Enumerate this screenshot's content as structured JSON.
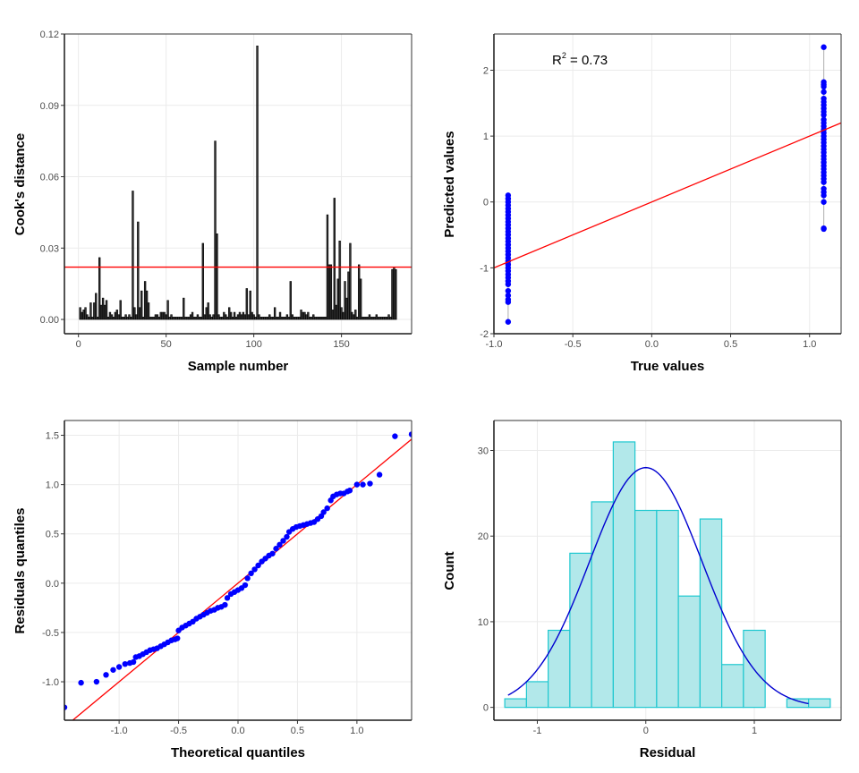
{
  "chart_data": [
    {
      "id": "cooks",
      "type": "bar",
      "title": "",
      "xlabel": "Sample number",
      "ylabel": "Cook's distance",
      "xlim": [
        -8,
        190
      ],
      "ylim": [
        -0.006,
        0.12
      ],
      "xticks": [
        0,
        50,
        100,
        150
      ],
      "xtick_labels": [
        "0",
        "50",
        "100",
        "150"
      ],
      "yticks": [
        0,
        0.03,
        0.06,
        0.09,
        0.12
      ],
      "ytick_labels": [
        "0.00",
        "0.03",
        "0.06",
        "0.09",
        "0.12"
      ],
      "grid": true,
      "threshold": 0.022,
      "threshold_color": "#ff0000",
      "bar_color": "#333333",
      "x_start": 1,
      "values": [
        0.005,
        0.003,
        0.004,
        0.005,
        0.002,
        0.001,
        0.007,
        0.001,
        0.007,
        0.011,
        0.001,
        0.026,
        0.006,
        0.009,
        0.006,
        0.008,
        0.001,
        0.003,
        0.002,
        0.001,
        0.003,
        0.004,
        0.002,
        0.008,
        0.001,
        0.001,
        0.002,
        0.001,
        0.002,
        0.001,
        0.054,
        0.005,
        0.002,
        0.041,
        0.005,
        0.012,
        0.001,
        0.016,
        0.012,
        0.007,
        0.001,
        0.001,
        0.001,
        0.002,
        0.002,
        0.001,
        0.003,
        0.003,
        0.003,
        0.002,
        0.008,
        0.001,
        0.002,
        0.001,
        0.001,
        0.001,
        0.001,
        0.001,
        0.001,
        0.009,
        0.001,
        0.001,
        0.001,
        0.002,
        0.003,
        0.001,
        0.001,
        0.002,
        0.001,
        0.001,
        0.032,
        0.002,
        0.005,
        0.007,
        0.002,
        0.001,
        0.002,
        0.075,
        0.036,
        0.002,
        0.001,
        0.001,
        0.003,
        0.002,
        0.001,
        0.005,
        0.003,
        0.001,
        0.003,
        0.001,
        0.002,
        0.003,
        0.002,
        0.003,
        0.002,
        0.013,
        0.002,
        0.012,
        0.003,
        0.002,
        0.001,
        0.115,
        0.002,
        0.001,
        0.001,
        0.001,
        0.001,
        0.001,
        0.002,
        0.001,
        0.001,
        0.005,
        0.001,
        0.001,
        0.003,
        0.001,
        0.001,
        0.001,
        0.002,
        0.001,
        0.016,
        0.002,
        0.001,
        0.001,
        0.001,
        0.001,
        0.004,
        0.003,
        0.003,
        0.002,
        0.003,
        0.001,
        0.001,
        0.002,
        0.001,
        0.001,
        0.001,
        0.001,
        0.001,
        0.001,
        0.001,
        0.044,
        0.023,
        0.023,
        0.004,
        0.051,
        0.006,
        0.017,
        0.033,
        0.005,
        0.003,
        0.016,
        0.009,
        0.02,
        0.032,
        0.003,
        0.002,
        0.004,
        0.001,
        0.023,
        0.017,
        0.001,
        0.001,
        0.001,
        0.001,
        0.002,
        0.001,
        0.001,
        0.001,
        0.002,
        0.001,
        0.001,
        0.001,
        0.001,
        0.001,
        0.001,
        0.002,
        0.001,
        0.021,
        0.022,
        0.021
      ]
    },
    {
      "id": "pred_vs_true",
      "type": "scatter",
      "xlabel": "True values",
      "ylabel": "Predicted values",
      "xlim": [
        -1.0,
        1.2
      ],
      "ylim": [
        -2.0,
        2.55
      ],
      "xticks": [
        -1.0,
        -0.5,
        0.0,
        0.5,
        1.0
      ],
      "xtick_labels": [
        "-1.0",
        "-0.5",
        "0.0",
        "0.5",
        "1.0"
      ],
      "yticks": [
        -2,
        -1,
        0,
        1,
        2
      ],
      "ytick_labels": [
        "-2",
        "-1",
        "0",
        "1",
        "2"
      ],
      "grid": true,
      "annotation": {
        "text_r": "R",
        "text_sup": "2",
        "text_rest": " = 0.73",
        "x": -0.65,
        "y": 2.15
      },
      "point_color": "#0000ff",
      "fit_line": {
        "slope": 1.0,
        "intercept": 0.0,
        "color": "#ff0000"
      },
      "groups": [
        {
          "x": -0.91,
          "min": -1.82,
          "max": 0.1,
          "values": [
            0.1,
            0.05,
            0.0,
            -0.05,
            -0.1,
            -0.15,
            -0.2,
            -0.25,
            -0.3,
            -0.35,
            -0.4,
            -0.45,
            -0.5,
            -0.55,
            -0.6,
            -0.65,
            -0.7,
            -0.75,
            -0.8,
            -0.85,
            -0.9,
            -0.95,
            -1.0,
            -1.05,
            -1.1,
            -1.15,
            -1.2,
            -1.25,
            -1.35,
            -1.42,
            -1.48,
            -1.52,
            -1.82
          ]
        },
        {
          "x": 1.09,
          "min": -0.41,
          "max": 2.35,
          "values": [
            2.35,
            1.82,
            1.78,
            1.75,
            1.67,
            1.57,
            1.52,
            1.47,
            1.42,
            1.37,
            1.32,
            1.25,
            1.2,
            1.15,
            1.1,
            1.05,
            1.0,
            0.95,
            0.9,
            0.85,
            0.8,
            0.75,
            0.7,
            0.65,
            0.6,
            0.55,
            0.5,
            0.45,
            0.4,
            0.35,
            0.3,
            0.2,
            0.15,
            0.1,
            0.0,
            -0.4,
            -0.41
          ]
        }
      ]
    },
    {
      "id": "qq",
      "type": "scatter",
      "xlabel": "Theoretical quantiles",
      "ylabel": "Residuals quantiles",
      "xlim": [
        -1.46,
        1.46
      ],
      "ylim": [
        -1.39,
        1.65
      ],
      "xticks": [
        -1.0,
        -0.5,
        0.0,
        0.5,
        1.0
      ],
      "xtick_labels": [
        "-1.0",
        "-0.5",
        "0.0",
        "0.5",
        "1.0"
      ],
      "yticks": [
        -1.0,
        -0.5,
        0.0,
        0.5,
        1.0,
        1.5
      ],
      "ytick_labels": [
        "-1.0",
        "-0.5",
        "0.0",
        "0.5",
        "1.0",
        "1.5"
      ],
      "grid": true,
      "point_color": "#0000ff",
      "ref_line": {
        "slope": 1.0,
        "intercept": 0.0,
        "color": "#ff0000"
      },
      "points": [
        [
          -1.46,
          -1.26
        ],
        [
          -1.32,
          -1.01
        ],
        [
          -1.19,
          -1.0
        ],
        [
          -1.11,
          -0.93
        ],
        [
          -1.05,
          -0.88
        ],
        [
          -1.0,
          -0.85
        ],
        [
          -0.95,
          -0.82
        ],
        [
          -0.91,
          -0.81
        ],
        [
          -0.88,
          -0.8
        ],
        [
          -0.86,
          -0.75
        ],
        [
          -0.83,
          -0.74
        ],
        [
          -0.8,
          -0.72
        ],
        [
          -0.77,
          -0.7
        ],
        [
          -0.74,
          -0.68
        ],
        [
          -0.71,
          -0.67
        ],
        [
          -0.68,
          -0.66
        ],
        [
          -0.65,
          -0.64
        ],
        [
          -0.62,
          -0.62
        ],
        [
          -0.59,
          -0.6
        ],
        [
          -0.56,
          -0.58
        ],
        [
          -0.53,
          -0.57
        ],
        [
          -0.51,
          -0.56
        ],
        [
          -0.5,
          -0.48
        ],
        [
          -0.47,
          -0.45
        ],
        [
          -0.44,
          -0.43
        ],
        [
          -0.41,
          -0.41
        ],
        [
          -0.38,
          -0.39
        ],
        [
          -0.35,
          -0.36
        ],
        [
          -0.32,
          -0.34
        ],
        [
          -0.29,
          -0.32
        ],
        [
          -0.26,
          -0.3
        ],
        [
          -0.23,
          -0.28
        ],
        [
          -0.2,
          -0.27
        ],
        [
          -0.17,
          -0.25
        ],
        [
          -0.14,
          -0.24
        ],
        [
          -0.11,
          -0.22
        ],
        [
          -0.09,
          -0.15
        ],
        [
          -0.06,
          -0.11
        ],
        [
          -0.03,
          -0.09
        ],
        [
          0.0,
          -0.07
        ],
        [
          0.03,
          -0.05
        ],
        [
          0.06,
          -0.02
        ],
        [
          0.08,
          0.05
        ],
        [
          0.11,
          0.1
        ],
        [
          0.14,
          0.14
        ],
        [
          0.17,
          0.18
        ],
        [
          0.2,
          0.22
        ],
        [
          0.23,
          0.25
        ],
        [
          0.26,
          0.28
        ],
        [
          0.29,
          0.3
        ],
        [
          0.32,
          0.35
        ],
        [
          0.35,
          0.39
        ],
        [
          0.38,
          0.43
        ],
        [
          0.41,
          0.47
        ],
        [
          0.43,
          0.52
        ],
        [
          0.46,
          0.55
        ],
        [
          0.49,
          0.57
        ],
        [
          0.52,
          0.58
        ],
        [
          0.55,
          0.59
        ],
        [
          0.58,
          0.6
        ],
        [
          0.61,
          0.61
        ],
        [
          0.64,
          0.62
        ],
        [
          0.67,
          0.65
        ],
        [
          0.7,
          0.68
        ],
        [
          0.72,
          0.72
        ],
        [
          0.75,
          0.76
        ],
        [
          0.78,
          0.84
        ],
        [
          0.8,
          0.88
        ],
        [
          0.83,
          0.9
        ],
        [
          0.86,
          0.91
        ],
        [
          0.89,
          0.91
        ],
        [
          0.92,
          0.93
        ],
        [
          0.94,
          0.94
        ],
        [
          1.0,
          1.0
        ],
        [
          1.05,
          1.0
        ],
        [
          1.11,
          1.01
        ],
        [
          1.19,
          1.1
        ],
        [
          1.32,
          1.49
        ],
        [
          1.46,
          1.51
        ]
      ]
    },
    {
      "id": "residual_hist",
      "type": "bar",
      "xlabel": "Residual",
      "ylabel": "Count",
      "xlim": [
        -1.4,
        1.8
      ],
      "ylim": [
        -1.5,
        33.5
      ],
      "xticks": [
        -1,
        0,
        1
      ],
      "xtick_labels": [
        "-1",
        "0",
        "1"
      ],
      "yticks": [
        0,
        10,
        20,
        30
      ],
      "ytick_labels": [
        "0",
        "10",
        "20",
        "30"
      ],
      "grid": true,
      "bin_width": 0.2,
      "bin_start": -1.3,
      "counts": [
        1,
        3,
        9,
        18,
        24,
        31,
        23,
        23,
        13,
        22,
        5,
        9,
        0,
        1,
        1
      ],
      "fill_color": "#b2e8ea",
      "edge_color": "#1ec8d0",
      "density_curve": {
        "mean": 0.0,
        "sd": 0.52,
        "peak": 28,
        "from": -1.27,
        "to": 1.5,
        "color": "#0000d0"
      }
    }
  ]
}
